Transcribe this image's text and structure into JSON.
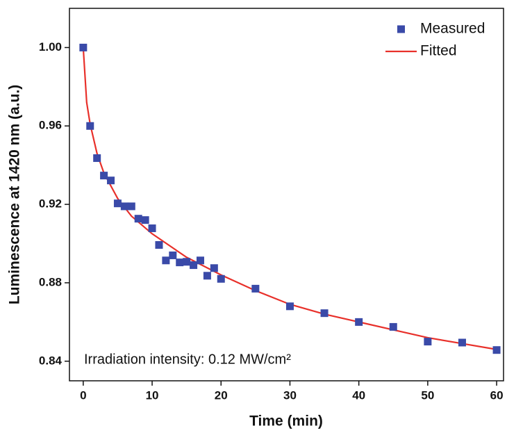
{
  "chart_data": {
    "type": "scatter",
    "xlabel": "Time (min)",
    "ylabel": "Luminescence at 1420 nm (a.u.)",
    "annotation": "Irradiation intensity: 0.12 MW/cm²",
    "xlim": [
      -2,
      61
    ],
    "ylim": [
      0.83,
      1.02
    ],
    "xticks": [
      0,
      10,
      20,
      30,
      40,
      50,
      60
    ],
    "yticks": [
      0.84,
      0.88,
      0.92,
      0.96,
      {
        "value": 1,
        "label": "1.00"
      }
    ],
    "legend": "top-right",
    "series": [
      {
        "name": "Measured",
        "color": "#3a4aa8",
        "kind": "scatter",
        "x": [
          0,
          1,
          2,
          3,
          4,
          5,
          6,
          7,
          8,
          9,
          10,
          11,
          12,
          13,
          14,
          15,
          16,
          17,
          18,
          19,
          20,
          25,
          30,
          35,
          40,
          45,
          50,
          55,
          60
        ],
        "values": [
          1.0,
          0.96,
          0.9436,
          0.9347,
          0.9322,
          0.9205,
          0.919,
          0.919,
          0.9127,
          0.912,
          0.9078,
          0.8993,
          0.8914,
          0.894,
          0.8904,
          0.8907,
          0.889,
          0.8914,
          0.8836,
          0.8875,
          0.882,
          0.877,
          0.868,
          0.8645,
          0.86,
          0.8575,
          0.85,
          0.8495,
          0.8457
        ]
      },
      {
        "name": "Fitted",
        "color": "#e8302a",
        "kind": "line",
        "x": [
          0,
          0.5,
          1,
          2,
          3,
          5,
          7,
          10,
          15,
          20,
          25,
          30,
          35,
          40,
          45,
          50,
          55,
          60
        ],
        "values": [
          1.0,
          0.972,
          0.961,
          0.946,
          0.936,
          0.923,
          0.914,
          0.905,
          0.893,
          0.884,
          0.876,
          0.869,
          0.864,
          0.86,
          0.856,
          0.852,
          0.849,
          0.846
        ]
      }
    ]
  }
}
